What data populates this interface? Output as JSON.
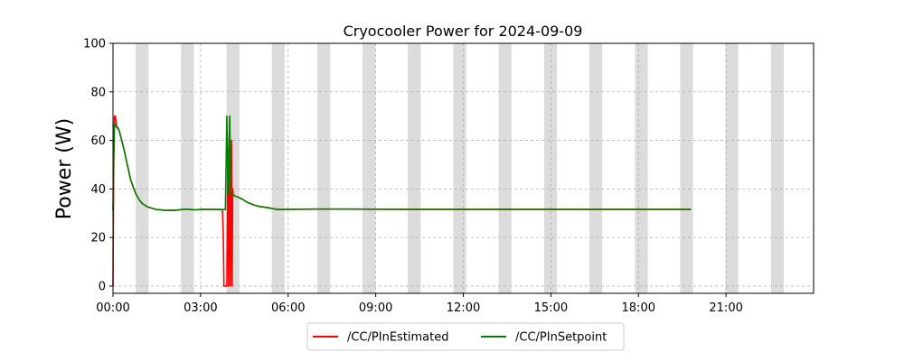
{
  "chart_data": {
    "type": "line",
    "title": "Cryocooler Power for 2024-09-09",
    "xlabel": "",
    "ylabel": "Power (W)",
    "xlim_hours": [
      0,
      24
    ],
    "ylim": [
      -3,
      100
    ],
    "x_ticks": [
      {
        "hour": 0,
        "label": "00:00"
      },
      {
        "hour": 3,
        "label": "03:00"
      },
      {
        "hour": 6,
        "label": "06:00"
      },
      {
        "hour": 9,
        "label": "09:00"
      },
      {
        "hour": 12,
        "label": "12:00"
      },
      {
        "hour": 15,
        "label": "15:00"
      },
      {
        "hour": 18,
        "label": "18:00"
      },
      {
        "hour": 21,
        "label": "21:00"
      }
    ],
    "y_ticks": [
      0,
      20,
      40,
      60,
      80,
      100
    ],
    "grid": "dashed",
    "legend_position": "bottom-center",
    "shaded_bands_hours": [
      [
        0.78,
        1.22
      ],
      [
        2.33,
        2.77
      ],
      [
        3.89,
        4.33
      ],
      [
        5.44,
        5.88
      ],
      [
        7.0,
        7.44
      ],
      [
        8.55,
        8.99
      ],
      [
        10.1,
        10.54
      ],
      [
        11.66,
        12.1
      ],
      [
        13.21,
        13.65
      ],
      [
        14.77,
        15.21
      ],
      [
        16.32,
        16.76
      ],
      [
        17.88,
        18.32
      ],
      [
        19.43,
        19.87
      ],
      [
        20.98,
        21.42
      ],
      [
        22.54,
        22.98
      ]
    ],
    "band_color": "#dcdcdc",
    "series": [
      {
        "name": "/CC/PInEstimated",
        "color": "#ff0000",
        "x": [
          0.0,
          0.02,
          0.05,
          0.08,
          0.12,
          0.15,
          0.2,
          0.3,
          0.4,
          0.5,
          0.6,
          0.7,
          0.8,
          0.9,
          1.0,
          1.2,
          1.5,
          1.8,
          2.1,
          2.5,
          2.8,
          3.1,
          3.4,
          3.75,
          3.78,
          3.8,
          3.85,
          3.9,
          3.93,
          3.96,
          3.98,
          4.0,
          4.02,
          4.04,
          4.06,
          4.08,
          4.1,
          4.12,
          4.2,
          4.4,
          4.6,
          4.8,
          5.0,
          5.3,
          5.6,
          5.8,
          6.0,
          7.0,
          8.0,
          10.0,
          12.0,
          14.0,
          16.0,
          18.0,
          19.8
        ],
        "y": [
          0.0,
          45.0,
          70.0,
          70.0,
          66.0,
          65.5,
          64.5,
          60.0,
          55.0,
          49.5,
          44.0,
          40.5,
          37.5,
          35.5,
          34.0,
          32.5,
          31.5,
          31.2,
          31.2,
          31.7,
          31.4,
          31.6,
          31.6,
          31.5,
          20.0,
          0.0,
          0.0,
          0.0,
          50.0,
          0.0,
          40.0,
          70.0,
          0.0,
          38.0,
          60.0,
          0.0,
          40.0,
          37.5,
          37.0,
          36.0,
          34.5,
          33.5,
          32.8,
          32.3,
          31.6,
          31.5,
          31.6,
          31.7,
          31.7,
          31.6,
          31.6,
          31.6,
          31.6,
          31.6,
          31.6
        ]
      },
      {
        "name": "/CC/PInSetpoint",
        "color": "#008000",
        "x": [
          0.0,
          0.02,
          0.05,
          0.08,
          0.12,
          0.15,
          0.2,
          0.3,
          0.4,
          0.5,
          0.6,
          0.7,
          0.8,
          0.9,
          1.0,
          1.2,
          1.5,
          1.8,
          2.1,
          2.5,
          2.8,
          3.1,
          3.4,
          3.75,
          3.85,
          3.9,
          3.93,
          3.95,
          3.97,
          4.0,
          4.02,
          4.04,
          4.06,
          4.1,
          4.2,
          4.4,
          4.6,
          4.8,
          5.0,
          5.3,
          5.6,
          5.8,
          6.0,
          7.0,
          8.0,
          10.0,
          12.0,
          14.0,
          16.0,
          18.0,
          19.8
        ],
        "y": [
          31.0,
          50.0,
          67.0,
          66.0,
          65.5,
          65.0,
          64.5,
          60.0,
          55.0,
          49.5,
          44.0,
          40.5,
          37.5,
          35.5,
          34.0,
          32.5,
          31.5,
          31.2,
          31.2,
          31.7,
          31.4,
          31.6,
          31.6,
          31.5,
          31.5,
          70.0,
          50.0,
          38.0,
          55.0,
          70.0,
          45.0,
          38.0,
          37.8,
          37.6,
          37.0,
          36.0,
          34.5,
          33.5,
          32.8,
          32.3,
          31.6,
          31.5,
          31.6,
          31.7,
          31.7,
          31.6,
          31.6,
          31.6,
          31.6,
          31.6,
          31.6
        ]
      }
    ]
  }
}
